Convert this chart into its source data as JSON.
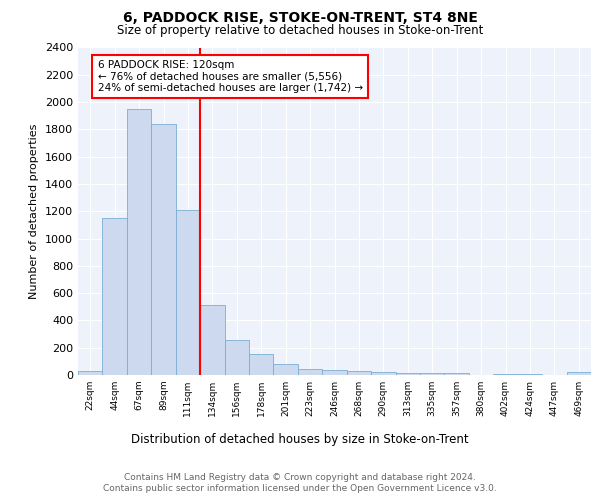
{
  "title": "6, PADDOCK RISE, STOKE-ON-TRENT, ST4 8NE",
  "subtitle": "Size of property relative to detached houses in Stoke-on-Trent",
  "xlabel": "Distribution of detached houses by size in Stoke-on-Trent",
  "ylabel": "Number of detached properties",
  "categories": [
    "22sqm",
    "44sqm",
    "67sqm",
    "89sqm",
    "111sqm",
    "134sqm",
    "156sqm",
    "178sqm",
    "201sqm",
    "223sqm",
    "246sqm",
    "268sqm",
    "290sqm",
    "313sqm",
    "335sqm",
    "357sqm",
    "380sqm",
    "402sqm",
    "424sqm",
    "447sqm",
    "469sqm"
  ],
  "values": [
    30,
    1150,
    1950,
    1840,
    1210,
    510,
    260,
    155,
    80,
    45,
    35,
    30,
    20,
    15,
    15,
    15,
    0,
    10,
    10,
    0,
    20
  ],
  "bar_color": "#ccd9ef",
  "bar_edge_color": "#7aadd4",
  "vline_x_idx": 4.5,
  "vline_color": "red",
  "annotation_line1": "6 PADDOCK RISE: 120sqm",
  "annotation_line2": "← 76% of detached houses are smaller (5,556)",
  "annotation_line3": "24% of semi-detached houses are larger (1,742) →",
  "annotation_box_color": "white",
  "annotation_box_edge": "red",
  "ylim": [
    0,
    2400
  ],
  "yticks": [
    0,
    200,
    400,
    600,
    800,
    1000,
    1200,
    1400,
    1600,
    1800,
    2000,
    2200,
    2400
  ],
  "footer1": "Contains HM Land Registry data © Crown copyright and database right 2024.",
  "footer2": "Contains public sector information licensed under the Open Government Licence v3.0.",
  "bg_color": "#eef2fa",
  "fig_bg_color": "#ffffff"
}
